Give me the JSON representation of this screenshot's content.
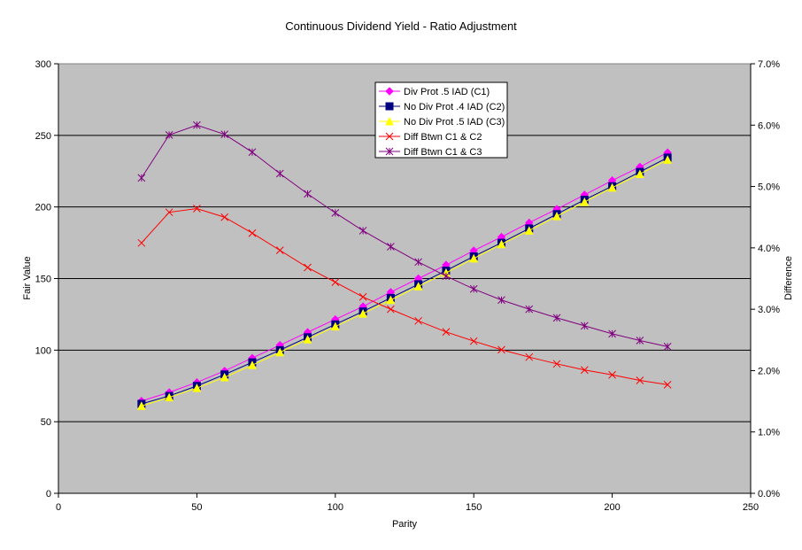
{
  "chart_data": {
    "type": "line",
    "title": "Continuous Dividend Yield - Ratio Adjustment",
    "xlabel": "Parity",
    "ylabel": "Fair Value",
    "y2label": "Difference",
    "xlim": [
      0,
      250
    ],
    "ylim": [
      0,
      300
    ],
    "y2lim": [
      0,
      7.0
    ],
    "x_ticks": [
      "0",
      "50",
      "100",
      "150",
      "200",
      "250"
    ],
    "y_ticks": [
      "0",
      "50",
      "100",
      "150",
      "200",
      "250",
      "300"
    ],
    "y2_ticks": [
      "0.0%",
      "1.0%",
      "2.0%",
      "3.0%",
      "4.0%",
      "5.0%",
      "6.0%",
      "7.0%"
    ],
    "plot_background": "#c0c0c0",
    "grid": "horizontal major gridlines",
    "legend_position": "top-center",
    "x": [
      30,
      40,
      50,
      60,
      70,
      80,
      90,
      100,
      110,
      120,
      130,
      140,
      150,
      160,
      170,
      180,
      190,
      200,
      210,
      220
    ],
    "series": [
      {
        "name": "Div Prot .5 IAD (C1)",
        "axis": "left",
        "color": "#ff00ff",
        "marker": "diamond",
        "values": [
          64.5,
          70.5,
          77.5,
          85.5,
          94.5,
          103.5,
          112.5,
          121.5,
          130.5,
          140.5,
          150,
          159.5,
          169.5,
          179,
          189,
          198.5,
          208.5,
          218.5,
          228,
          238
        ]
      },
      {
        "name": "No Div Prot .4 IAD (C2)",
        "axis": "left",
        "color": "#000080",
        "marker": "square",
        "values": [
          62.5,
          68,
          75,
          83,
          91.5,
          100,
          109,
          118,
          127,
          136.5,
          146,
          155.5,
          165.5,
          175,
          185,
          195,
          205,
          214.5,
          224.5,
          234.5
        ]
      },
      {
        "name": "No Div Prot .5 IAD (C3)",
        "axis": "left",
        "color": "#ffff00",
        "marker": "triangle",
        "values": [
          61,
          67,
          73.5,
          81,
          89.5,
          98.5,
          107.5,
          116.5,
          125.5,
          135,
          144.5,
          154,
          164,
          174,
          183.5,
          193.5,
          203.5,
          213.5,
          223,
          233
        ]
      },
      {
        "name": "Diff Btwn C1 & C2",
        "axis": "right",
        "color": "#ff0000",
        "marker": "x",
        "values": [
          4.08,
          4.58,
          4.64,
          4.5,
          4.24,
          3.96,
          3.68,
          3.44,
          3.2,
          3.0,
          2.81,
          2.63,
          2.48,
          2.34,
          2.22,
          2.11,
          2.01,
          1.93,
          1.84,
          1.77
        ]
      },
      {
        "name": "Diff Btwn C1 & C3",
        "axis": "right",
        "color": "#800080",
        "marker": "star",
        "values": [
          5.14,
          5.84,
          6.0,
          5.85,
          5.56,
          5.21,
          4.88,
          4.57,
          4.28,
          4.02,
          3.77,
          3.54,
          3.33,
          3.15,
          3.0,
          2.86,
          2.73,
          2.6,
          2.49,
          2.39
        ]
      }
    ]
  }
}
